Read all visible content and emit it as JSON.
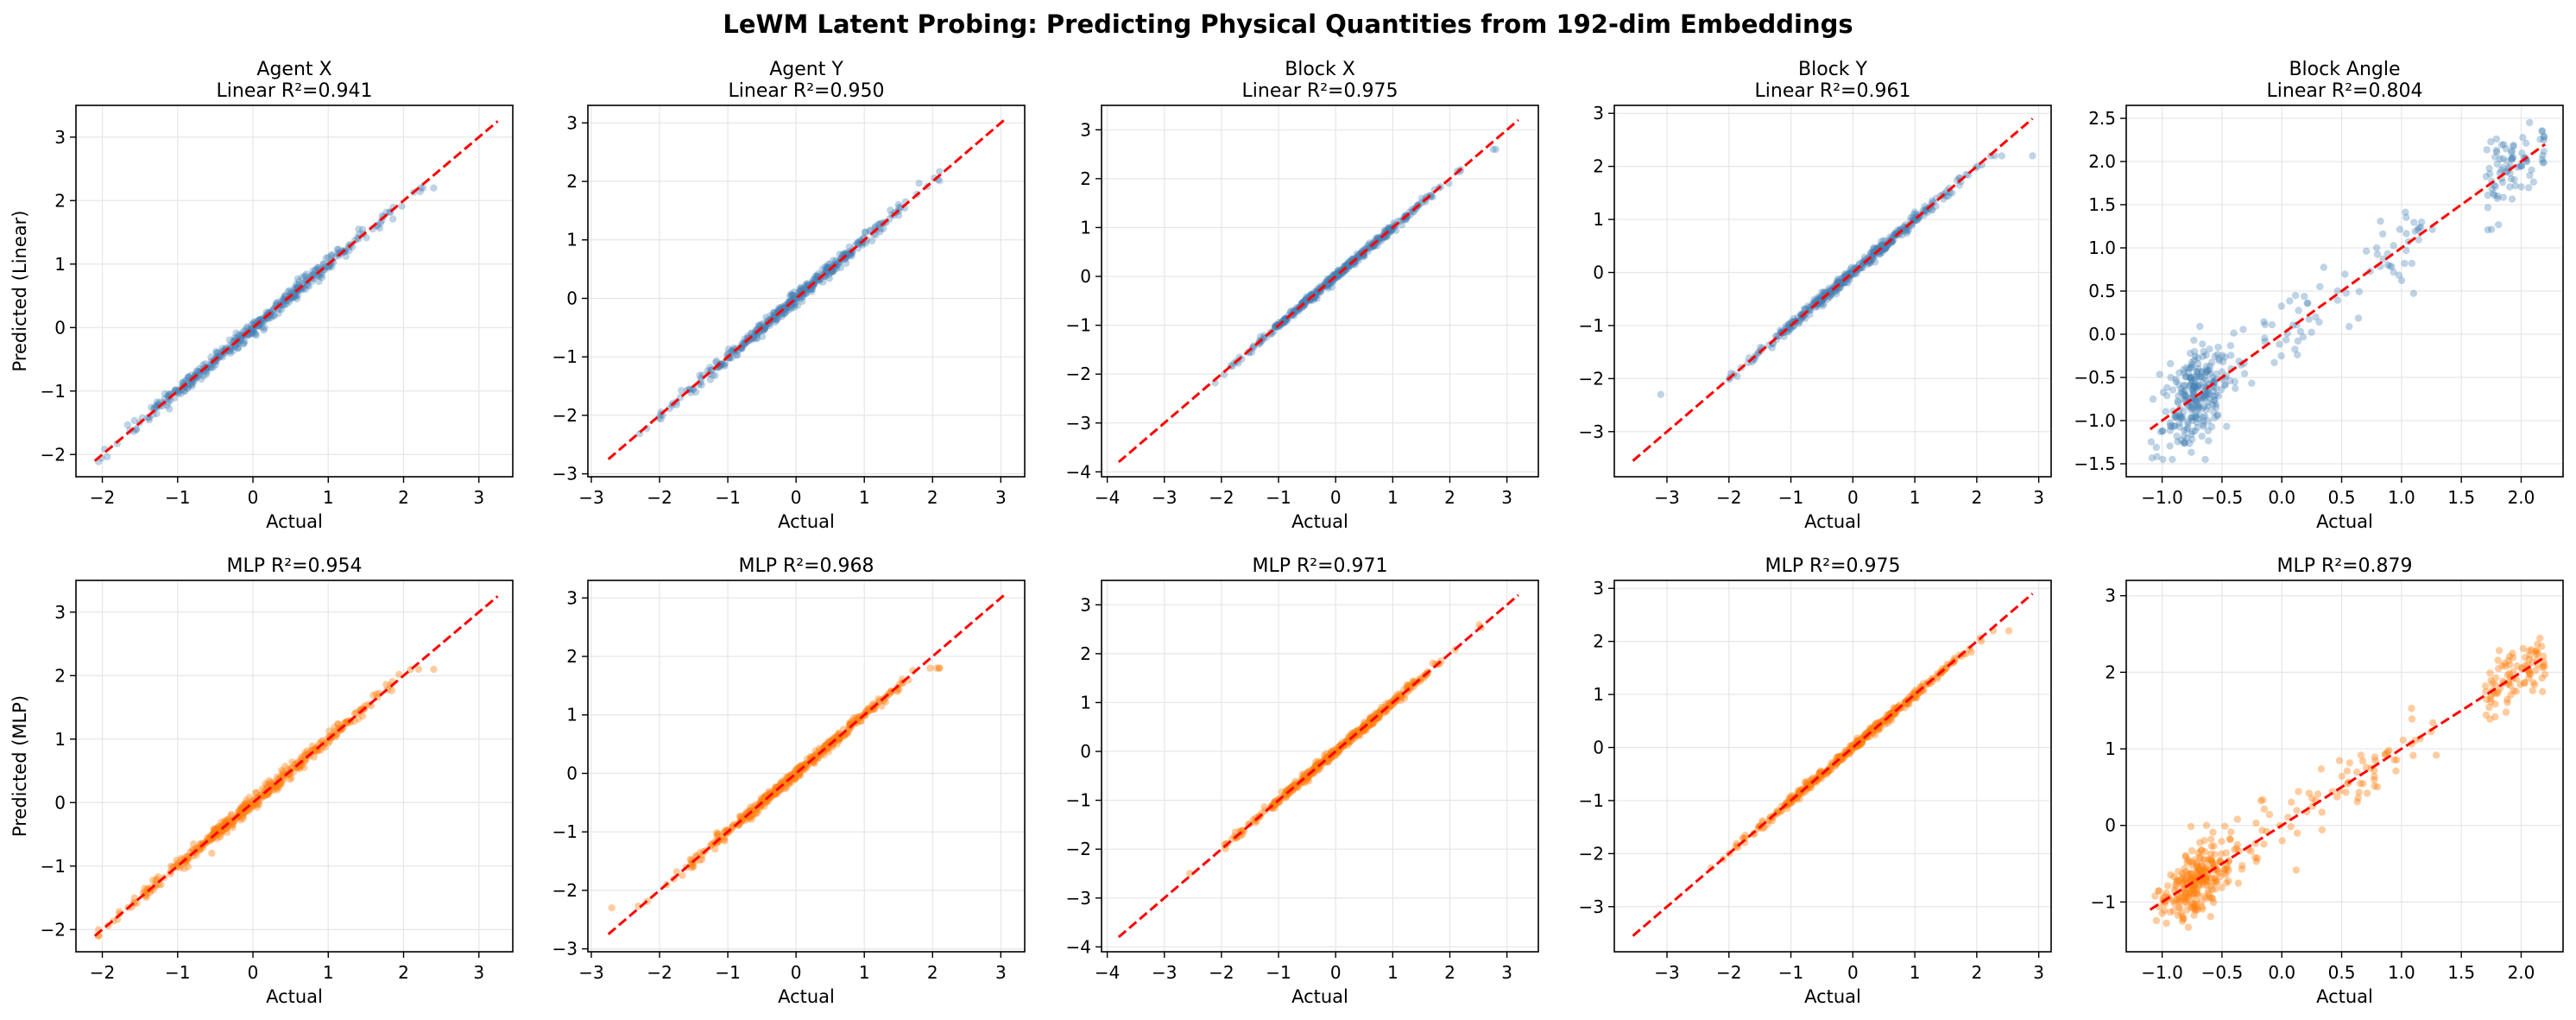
{
  "figure": {
    "suptitle": "LeWM Latent Probing: Predicting Physical Quantities from 192-dim Embeddings",
    "colors": {
      "linear": "#4682b4",
      "mlp": "#ff7f0e",
      "identity": "#ff0000",
      "grid": "#e6e6e6"
    }
  },
  "chart_data": [
    {
      "type": "scatter",
      "row": "linear",
      "col": 0,
      "title_lines": [
        "Agent X",
        "Linear R²=0.941"
      ],
      "xlabel": "Actual",
      "ylabel": "Predicted (Linear)",
      "xlim": [
        -2.35,
        3.45
      ],
      "ylim": [
        -2.35,
        3.5
      ],
      "xticks": [
        -2,
        -1,
        0,
        1,
        2,
        3
      ],
      "yticks": [
        -2,
        -1,
        0,
        1,
        2,
        3
      ],
      "r2": 0.941,
      "identity_line": [
        -2.1,
        3.25
      ],
      "x_range": [
        -2.05,
        2.4
      ],
      "y_range": [
        -2.15,
        2.2
      ],
      "grid": true
    },
    {
      "type": "scatter",
      "row": "linear",
      "col": 1,
      "title_lines": [
        "Agent Y",
        "Linear R²=0.950"
      ],
      "xlabel": "Actual",
      "ylabel": "",
      "xlim": [
        -3.05,
        3.35
      ],
      "ylim": [
        -3.05,
        3.3
      ],
      "xticks": [
        -3,
        -2,
        -1,
        0,
        1,
        2,
        3
      ],
      "yticks": [
        -3,
        -2,
        -1,
        0,
        1,
        2,
        3
      ],
      "r2": 0.95,
      "identity_line": [
        -2.75,
        3.05
      ],
      "x_range": [
        -2.7,
        2.1
      ],
      "y_range": [
        -2.55,
        2.2
      ],
      "grid": true
    },
    {
      "type": "scatter",
      "row": "linear",
      "col": 2,
      "title_lines": [
        "Block X",
        "Linear R²=0.975"
      ],
      "xlabel": "Actual",
      "ylabel": "",
      "xlim": [
        -4.1,
        3.55
      ],
      "ylim": [
        -4.1,
        3.5
      ],
      "xticks": [
        -4,
        -3,
        -2,
        -1,
        0,
        1,
        2,
        3
      ],
      "yticks": [
        -4,
        -3,
        -2,
        -1,
        0,
        1,
        2,
        3
      ],
      "r2": 0.975,
      "identity_line": [
        -3.8,
        3.2
      ],
      "x_range": [
        -3.7,
        3.1
      ],
      "y_range": [
        -2.9,
        2.6
      ],
      "grid": true
    },
    {
      "type": "scatter",
      "row": "linear",
      "col": 3,
      "title_lines": [
        "Block Y",
        "Linear R²=0.961"
      ],
      "xlabel": "Actual",
      "ylabel": "",
      "xlim": [
        -3.85,
        3.2
      ],
      "ylim": [
        -3.85,
        3.15
      ],
      "xticks": [
        -3,
        -2,
        -1,
        0,
        1,
        2,
        3
      ],
      "yticks": [
        -3,
        -2,
        -1,
        0,
        1,
        2,
        3
      ],
      "r2": 0.961,
      "identity_line": [
        -3.55,
        2.9
      ],
      "x_range": [
        -3.1,
        2.9
      ],
      "y_range": [
        -2.3,
        2.2
      ],
      "grid": true
    },
    {
      "type": "scatter",
      "row": "linear",
      "col": 4,
      "title_lines": [
        "Block Angle",
        "Linear R²=0.804"
      ],
      "xlabel": "Actual",
      "ylabel": "",
      "xlim": [
        -1.3,
        2.35
      ],
      "ylim": [
        -1.65,
        2.65
      ],
      "xticks": [
        -1.0,
        -0.5,
        0.0,
        0.5,
        1.0,
        1.5,
        2.0
      ],
      "yticks": [
        -1.5,
        -1.0,
        -0.5,
        0.0,
        0.5,
        1.0,
        1.5,
        2.0,
        2.5
      ],
      "r2": 0.804,
      "identity_line": [
        -1.1,
        2.2
      ],
      "x_range": [
        -1.15,
        2.2
      ],
      "y_range": [
        -1.45,
        2.45
      ],
      "grid": true
    },
    {
      "type": "scatter",
      "row": "mlp",
      "col": 0,
      "title_lines": [
        "MLP R²=0.954"
      ],
      "xlabel": "Actual",
      "ylabel": "Predicted (MLP)",
      "xlim": [
        -2.35,
        3.45
      ],
      "ylim": [
        -2.35,
        3.5
      ],
      "xticks": [
        -2,
        -1,
        0,
        1,
        2,
        3
      ],
      "yticks": [
        -2,
        -1,
        0,
        1,
        2,
        3
      ],
      "r2": 0.954,
      "identity_line": [
        -2.1,
        3.25
      ],
      "x_range": [
        -2.05,
        2.4
      ],
      "y_range": [
        -2.15,
        2.1
      ],
      "grid": true
    },
    {
      "type": "scatter",
      "row": "mlp",
      "col": 1,
      "title_lines": [
        "MLP R²=0.968"
      ],
      "xlabel": "Actual",
      "ylabel": "",
      "xlim": [
        -3.05,
        3.35
      ],
      "ylim": [
        -3.05,
        3.3
      ],
      "xticks": [
        -3,
        -2,
        -1,
        0,
        1,
        2,
        3
      ],
      "yticks": [
        -3,
        -2,
        -1,
        0,
        1,
        2,
        3
      ],
      "r2": 0.968,
      "identity_line": [
        -2.75,
        3.05
      ],
      "x_range": [
        -2.7,
        2.1
      ],
      "y_range": [
        -2.3,
        1.8
      ],
      "grid": true
    },
    {
      "type": "scatter",
      "row": "mlp",
      "col": 2,
      "title_lines": [
        "MLP R²=0.971"
      ],
      "xlabel": "Actual",
      "ylabel": "",
      "xlim": [
        -4.1,
        3.55
      ],
      "ylim": [
        -4.1,
        3.5
      ],
      "xticks": [
        -4,
        -3,
        -2,
        -1,
        0,
        1,
        2,
        3
      ],
      "yticks": [
        -4,
        -3,
        -2,
        -1,
        0,
        1,
        2,
        3
      ],
      "r2": 0.971,
      "identity_line": [
        -3.8,
        3.2
      ],
      "x_range": [
        -3.7,
        3.1
      ],
      "y_range": [
        -2.6,
        2.8
      ],
      "grid": true
    },
    {
      "type": "scatter",
      "row": "mlp",
      "col": 3,
      "title_lines": [
        "MLP R²=0.975"
      ],
      "xlabel": "Actual",
      "ylabel": "",
      "xlim": [
        -3.85,
        3.2
      ],
      "ylim": [
        -3.85,
        3.15
      ],
      "xticks": [
        -3,
        -2,
        -1,
        0,
        1,
        2,
        3
      ],
      "yticks": [
        -3,
        -2,
        -1,
        0,
        1,
        2,
        3
      ],
      "r2": 0.975,
      "identity_line": [
        -3.55,
        2.9
      ],
      "x_range": [
        -3.1,
        2.9
      ],
      "y_range": [
        -2.75,
        2.2
      ],
      "grid": true
    },
    {
      "type": "scatter",
      "row": "mlp",
      "col": 4,
      "title_lines": [
        "MLP R²=0.879"
      ],
      "xlabel": "Actual",
      "ylabel": "",
      "xlim": [
        -1.3,
        2.35
      ],
      "ylim": [
        -1.65,
        3.2
      ],
      "xticks": [
        -1.0,
        -0.5,
        0.0,
        0.5,
        1.0,
        1.5,
        2.0
      ],
      "yticks": [
        -1,
        0,
        1,
        2,
        3
      ],
      "r2": 0.879,
      "identity_line": [
        -1.1,
        2.2
      ],
      "x_range": [
        -1.15,
        2.2
      ],
      "y_range": [
        -1.45,
        3.1
      ],
      "grid": true
    }
  ]
}
